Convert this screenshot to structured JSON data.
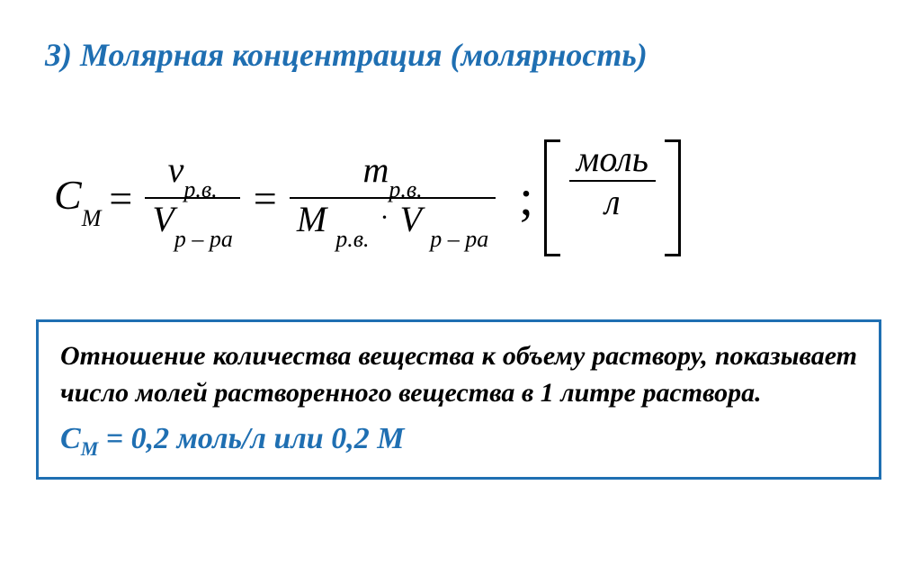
{
  "heading": "3) Молярная концентрация (молярность)",
  "formula": {
    "lhs_sym": "С",
    "lhs_sub": "М",
    "eq": "=",
    "frac1_num_sym": "ν",
    "frac1_num_sub": "р.в.",
    "frac1_den_sym": "V",
    "frac1_den_sub": "р – ра",
    "frac2_num_sym": "m",
    "frac2_num_sub": "р.в.",
    "frac2_den_sym1": "M",
    "frac2_den_sub1": "р.в.",
    "frac2_den_sym2": "V",
    "frac2_den_sub2": "р – ра",
    "semicolon": ";",
    "unit_num": "моль",
    "unit_den": "л"
  },
  "definition": "Отношение количества вещества к объему раствору, показывает число молей растворенного вещества в 1 литре раствора.",
  "example_prefix": "С",
  "example_sub": "М",
  "example_rest": " = 0,2 моль/л   или  0,2 М",
  "colors": {
    "accent": "#1f6fb2",
    "text": "#000000",
    "bg": "#ffffff"
  }
}
